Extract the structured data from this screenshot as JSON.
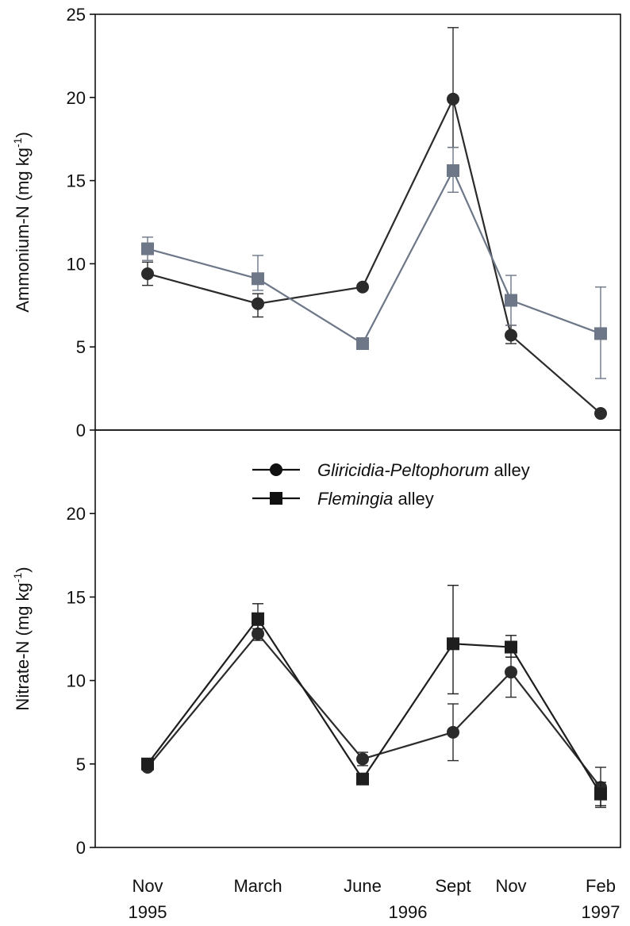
{
  "chart_data": [
    {
      "type": "line",
      "panel": "top",
      "ylabel": "Ammonium-N  (mg kg",
      "ylabel_sup": "-1",
      "ylabel_close": ")",
      "ylim": [
        0,
        25
      ],
      "yticks": [
        0,
        5,
        10,
        15,
        20,
        25
      ],
      "x_positions": [
        0,
        1.1,
        2.2,
        3.3,
        4.4,
        5.5
      ],
      "grid": false,
      "series": [
        {
          "key": "gliricidia",
          "marker": "circle",
          "values": [
            9.4,
            7.6,
            8.6,
            19.9,
            5.7,
            1.0
          ],
          "err_upper": [
            0.7,
            0.6,
            null,
            4.3,
            0.6,
            null
          ],
          "err_lower": [
            0.7,
            0.8,
            null,
            2.9,
            0.5,
            null
          ]
        },
        {
          "key": "flemingia",
          "marker": "square",
          "values": [
            10.9,
            9.1,
            5.2,
            15.6,
            7.8,
            5.8
          ],
          "err_upper": [
            0.7,
            1.4,
            null,
            1.4,
            1.5,
            2.8
          ],
          "err_lower": [
            0.7,
            0.7,
            null,
            1.3,
            1.5,
            2.7
          ]
        }
      ]
    },
    {
      "type": "line",
      "panel": "bottom",
      "ylabel": "Nitrate-N  (mg kg",
      "ylabel_sup": "-1",
      "ylabel_close": ")",
      "ylim": [
        0,
        25
      ],
      "yticks": [
        0,
        5,
        10,
        15,
        20
      ],
      "x_positions": [
        0,
        1.1,
        2.2,
        3.3,
        4.4,
        5.5
      ],
      "grid": false,
      "legend_placement": "top-right",
      "series": [
        {
          "key": "gliricidia",
          "marker": "circle",
          "values": [
            4.8,
            12.8,
            5.3,
            6.9,
            10.5,
            3.6
          ],
          "err_upper": [
            null,
            0.5,
            0.4,
            1.7,
            0.9,
            1.2
          ],
          "err_lower": [
            null,
            0.4,
            0.4,
            1.7,
            1.5,
            1.2
          ]
        },
        {
          "key": "flemingia",
          "marker": "square",
          "values": [
            5.0,
            13.7,
            4.1,
            12.2,
            12.0,
            3.2
          ],
          "err_upper": [
            null,
            0.9,
            null,
            3.5,
            0.7,
            0.7
          ],
          "err_lower": [
            null,
            0.6,
            null,
            3.0,
            0.6,
            0.7
          ]
        }
      ]
    }
  ],
  "legend": {
    "gliricidia": {
      "italic": "Gliricidia-Peltophorum",
      "rest": " alley"
    },
    "flemingia": {
      "italic": "Flemingia",
      "rest": " alley"
    }
  },
  "categories": [
    {
      "label": "Nov",
      "year": "1995"
    },
    {
      "label": "March",
      "year": ""
    },
    {
      "label": "June",
      "year": ""
    },
    {
      "label": "Sept",
      "year": ""
    },
    {
      "label": "Nov",
      "year": ""
    },
    {
      "label": "Feb",
      "year": "1997"
    }
  ],
  "mid_year_label": "1996",
  "colors": {
    "gliricidia_top": "#2b2b2b",
    "flemingia_top": "#6d7788",
    "gliricidia_bottom": "#2b2b2b",
    "flemingia_bottom": "#1e1e1e",
    "axis": "#111111"
  }
}
